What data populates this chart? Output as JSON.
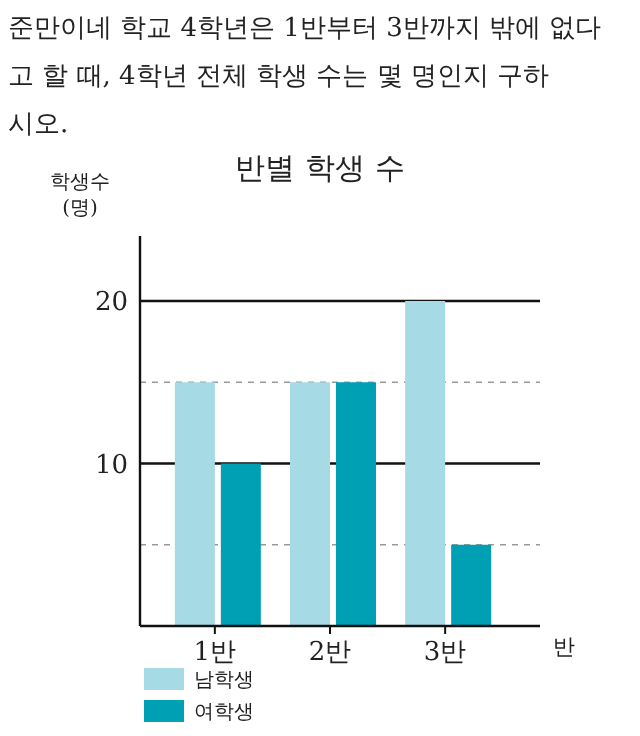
{
  "chart_data": {
    "type": "bar",
    "title": "반별 학생 수",
    "annotations": [
      "준만이네 학교 4학년은 1반부터 3반까지 밖에 없다고 할 때, 4학년 전체 학생 수는 몇 명인지 구하시오."
    ],
    "ylabel": "학생수\n(명)",
    "xlabel": "반",
    "categories": [
      "1반",
      "2반",
      "3반"
    ],
    "series": [
      {
        "name": "남학생",
        "color": "#a6dae4",
        "values": [
          15,
          15,
          20
        ]
      },
      {
        "name": "여학생",
        "color": "#00a0b4",
        "values": [
          10,
          15,
          5
        ]
      }
    ],
    "ylim": [
      0,
      24
    ],
    "yticks": [
      {
        "value": 5,
        "label": null
      },
      10,
      {
        "value": 15,
        "label": null
      },
      20
    ],
    "grid": "y",
    "legend": "bottom left"
  }
}
